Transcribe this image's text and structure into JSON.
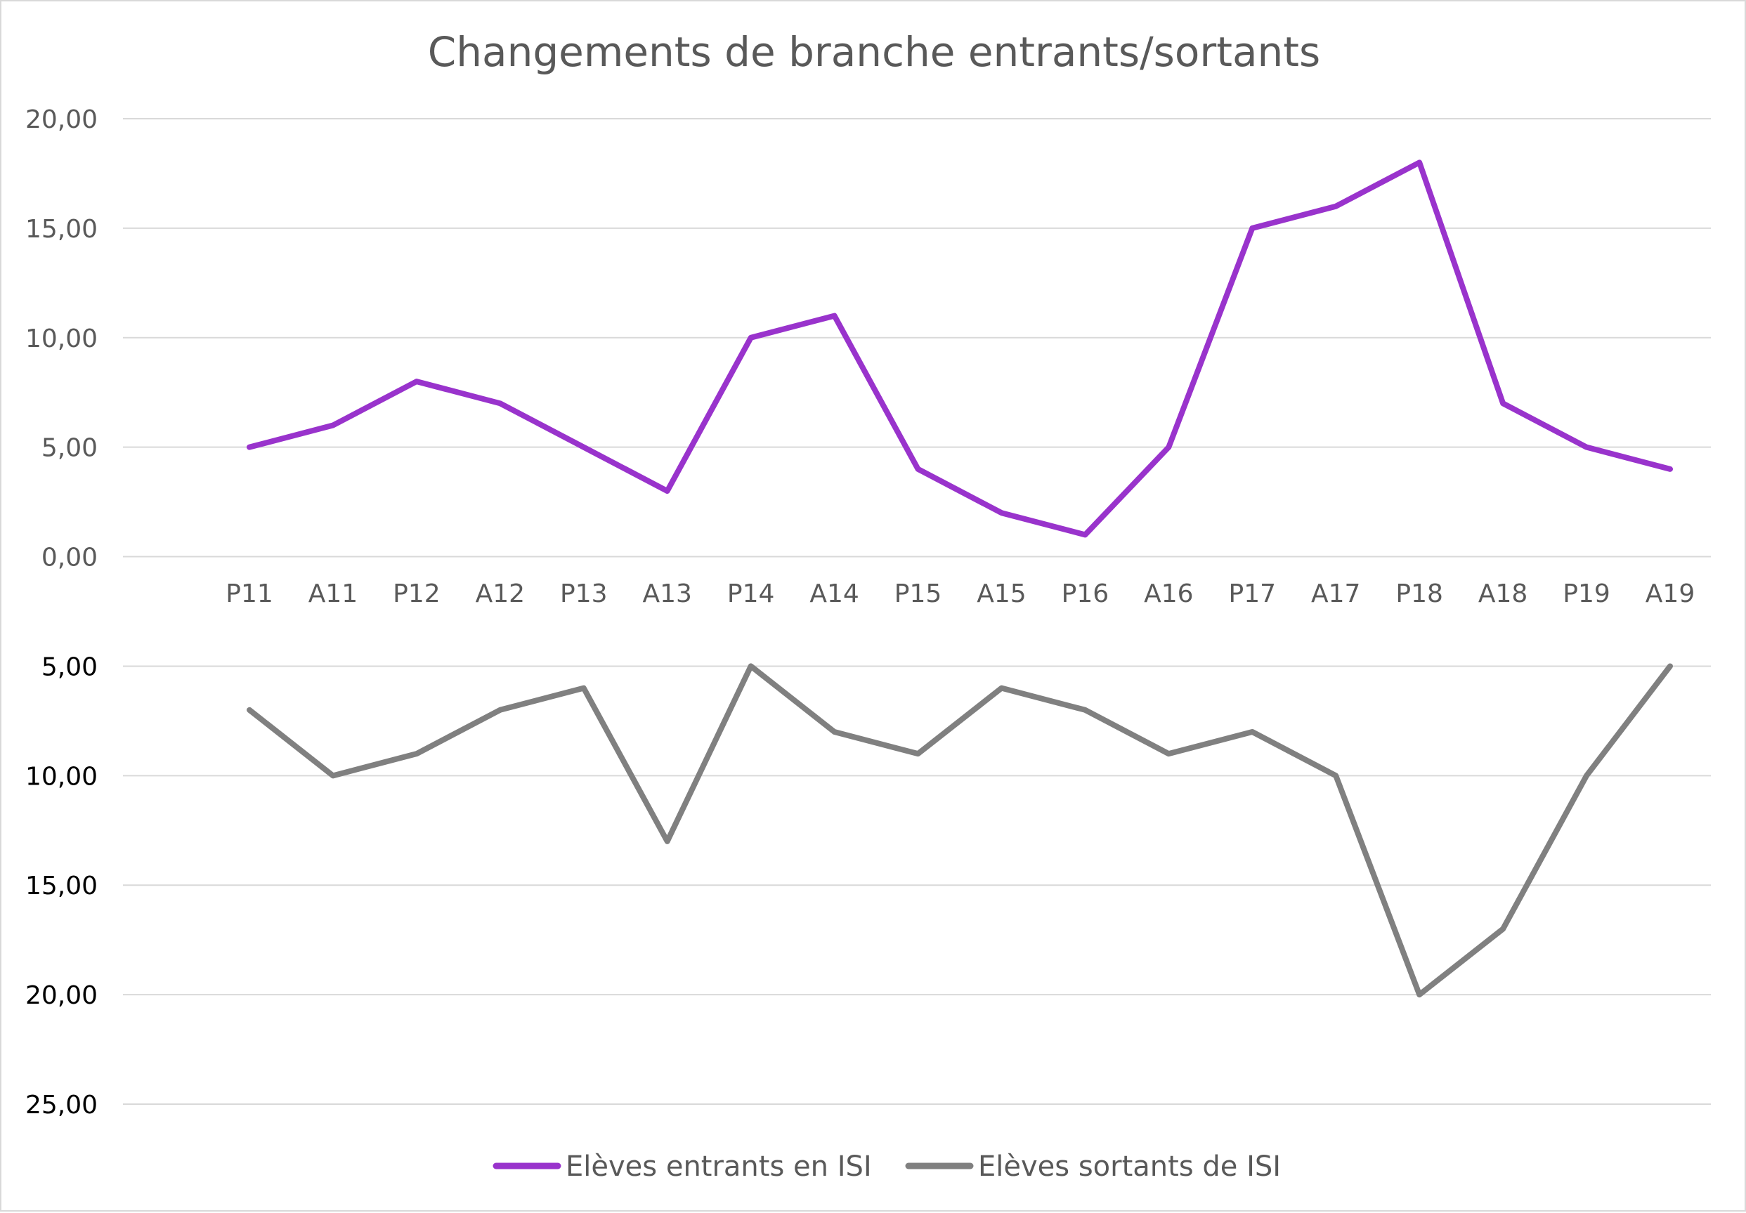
{
  "chart_data": {
    "type": "line",
    "title": "Changements de branche entrants/sortants",
    "categories": [
      "P11",
      "A11",
      "P12",
      "A12",
      "P13",
      "A13",
      "P14",
      "A14",
      "P15",
      "A15",
      "P16",
      "A16",
      "P17",
      "A17",
      "P18",
      "A18",
      "P19",
      "A19"
    ],
    "series": [
      {
        "name": "Elèves entrants en ISI",
        "color": "#9933cc",
        "values": [
          5,
          6,
          8,
          7,
          5,
          3,
          10,
          11,
          4,
          2,
          1,
          5,
          15,
          16,
          18,
          7,
          5,
          4
        ]
      },
      {
        "name": "Elèves sortants de ISI",
        "color": "#808080",
        "values": [
          -7,
          -10,
          -9,
          -7,
          -6,
          -13,
          -5,
          -8,
          -9,
          -6,
          -7,
          -9,
          -8,
          -10,
          -20,
          -17,
          -10,
          -5
        ]
      }
    ],
    "y_ticks": [
      {
        "value": 20,
        "label": "20,00"
      },
      {
        "value": 15,
        "label": "15,00"
      },
      {
        "value": 10,
        "label": "10,00"
      },
      {
        "value": 5,
        "label": "5,00"
      },
      {
        "value": 0,
        "label": "0,00"
      },
      {
        "value": -5,
        "label": "5,00"
      },
      {
        "value": -10,
        "label": "10,00"
      },
      {
        "value": -15,
        "label": "15,00"
      },
      {
        "value": -20,
        "label": "20,00"
      },
      {
        "value": -25,
        "label": "25,00"
      }
    ],
    "ylim": [
      -25,
      20
    ],
    "grid": true,
    "legend_position": "bottom"
  }
}
